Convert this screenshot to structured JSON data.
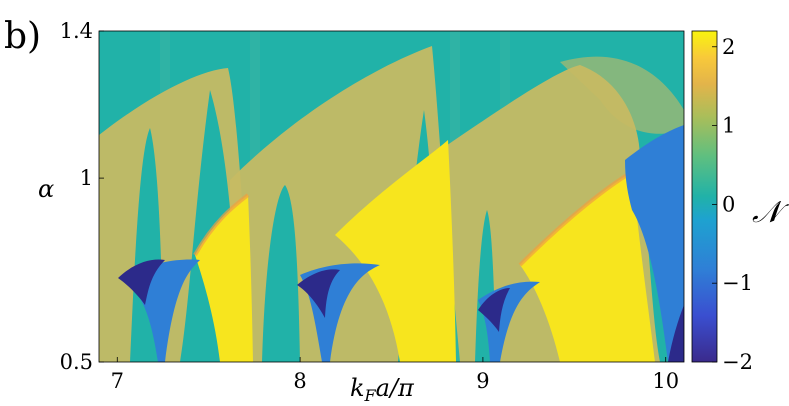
{
  "panel_label": "b)",
  "chart_data": {
    "type": "heatmap",
    "title": "",
    "xlabel": "k_F a/π",
    "ylabel": "α",
    "xlim": [
      6.9,
      10.1
    ],
    "ylim": [
      0.5,
      1.4
    ],
    "x_ticks": [
      7,
      8,
      9,
      10
    ],
    "x_tick_labels": [
      "7",
      "8",
      "9",
      "10"
    ],
    "y_ticks": [
      0.5,
      1,
      1.4
    ],
    "y_tick_labels": [
      "0.5",
      "1",
      "1.4"
    ],
    "colorbar": {
      "label": "𝒩",
      "range": [
        -2,
        2.2
      ],
      "ticks": [
        -2,
        -1,
        0,
        1,
        2
      ],
      "tick_labels": [
        "−2",
        "−1",
        "0",
        "1",
        "2"
      ],
      "colormap": "parula"
    },
    "colors": {
      "minus2": "#2c2a8a",
      "minus1": "#2f7fd6",
      "zero": "#21b2a8",
      "one": "#c6ba63",
      "two": "#f7e51e",
      "edge": "#f0a040"
    },
    "regions": [
      {
        "value": 0,
        "description": "background"
      },
      {
        "value": 1,
        "lobes": [
          [
            6.9,
            7.78
          ],
          [
            7.78,
            8.82
          ],
          [
            8.82,
            10.0
          ]
        ]
      },
      {
        "value": 2,
        "lobes": [
          [
            7.45,
            7.78
          ],
          [
            8.25,
            8.82
          ],
          [
            9.25,
            9.9
          ]
        ]
      },
      {
        "value": -1,
        "lobes": [
          [
            7.1,
            7.65
          ],
          [
            7.95,
            8.55
          ],
          [
            8.85,
            9.9
          ],
          [
            9.85,
            10.1
          ]
        ]
      },
      {
        "value": -2,
        "lobes": [
          [
            7.1,
            7.28
          ],
          [
            7.95,
            8.1
          ],
          [
            8.85,
            9.0
          ],
          [
            9.95,
            10.05
          ]
        ]
      }
    ]
  }
}
